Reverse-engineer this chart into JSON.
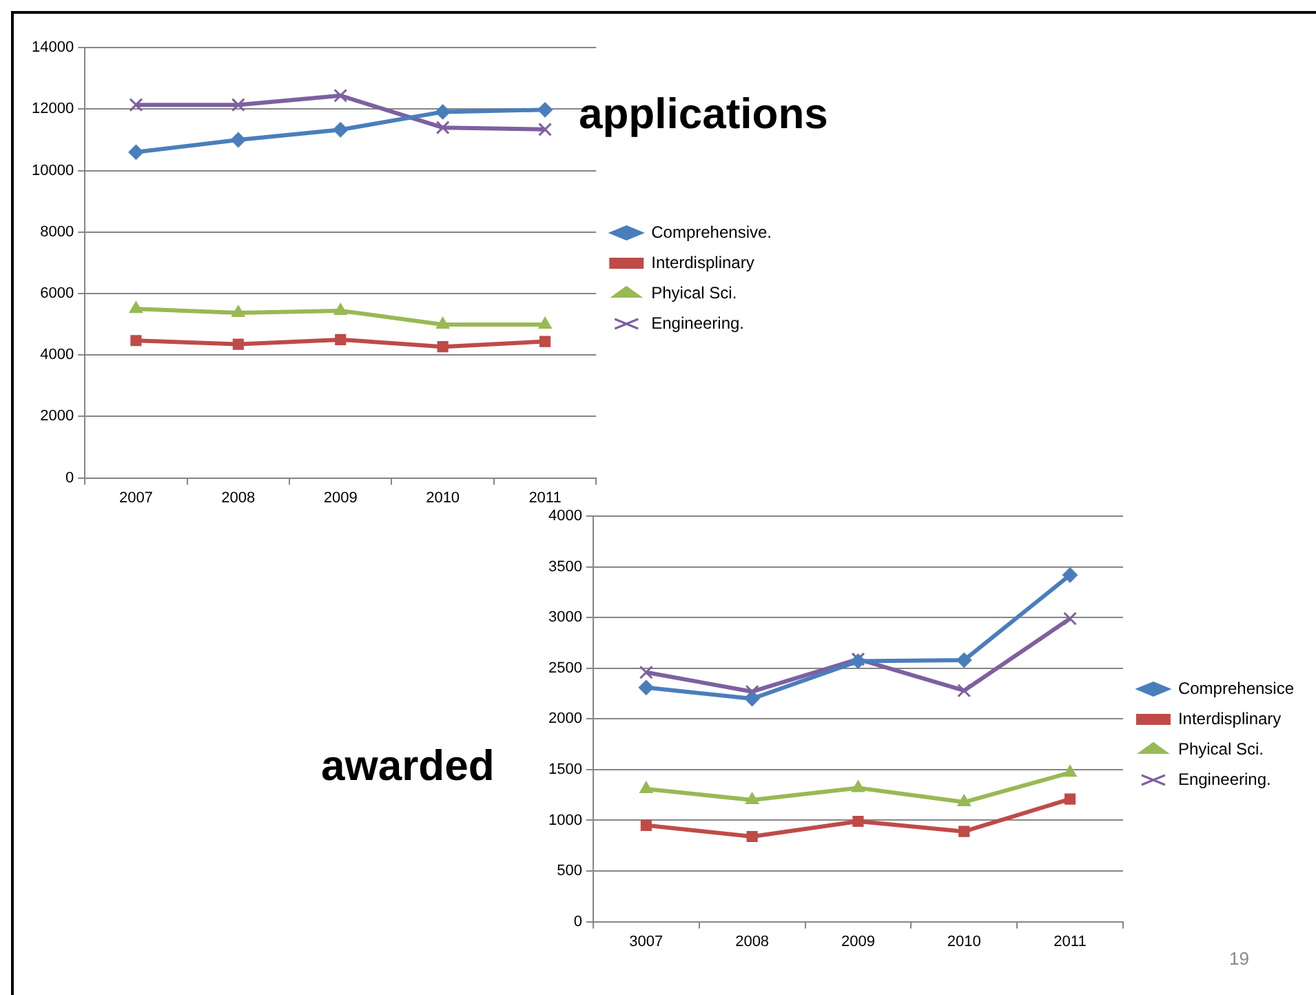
{
  "chart_data": [
    {
      "type": "line",
      "title": "applications",
      "categories": [
        "2007",
        "2008",
        "2009",
        "2010",
        "2011"
      ],
      "series": [
        {
          "name": "Comprehensive.",
          "color": "#4a7ebb",
          "marker": "diamond",
          "values": [
            10600,
            11000,
            11330,
            11910,
            11980
          ]
        },
        {
          "name": "Interdisplinary",
          "color": "#be4b48",
          "marker": "square",
          "values": [
            4470,
            4350,
            4500,
            4270,
            4440
          ]
        },
        {
          "name": "Phyical Sci.",
          "color": "#98b954",
          "marker": "triangle",
          "values": [
            5500,
            5370,
            5440,
            4990,
            4990
          ]
        },
        {
          "name": "Engineering.",
          "color": "#7d60a0",
          "marker": "cross",
          "values": [
            12140,
            12140,
            12440,
            11400,
            11340
          ]
        }
      ],
      "ylim": [
        0,
        14000
      ],
      "yticks": [
        0,
        2000,
        4000,
        6000,
        8000,
        10000,
        12000,
        14000
      ],
      "grid": "y",
      "legend": "right"
    },
    {
      "type": "line",
      "title": "awarded",
      "categories": [
        "3007",
        "2008",
        "2009",
        "2010",
        "2011"
      ],
      "series": [
        {
          "name": "Comprehensice",
          "color": "#4a7ebb",
          "marker": "diamond",
          "values": [
            2310,
            2200,
            2570,
            2580,
            3420
          ]
        },
        {
          "name": "Interdisplinary",
          "color": "#be4b48",
          "marker": "square",
          "values": [
            950,
            840,
            990,
            890,
            1210
          ]
        },
        {
          "name": "Phyical Sci.",
          "color": "#98b954",
          "marker": "triangle",
          "values": [
            1310,
            1200,
            1320,
            1180,
            1470
          ]
        },
        {
          "name": "Engineering.",
          "color": "#7d60a0",
          "marker": "cross",
          "values": [
            2460,
            2270,
            2590,
            2280,
            2990
          ]
        }
      ],
      "ylim": [
        0,
        4000
      ],
      "yticks": [
        0,
        500,
        1000,
        1500,
        2000,
        2500,
        3000,
        3500,
        4000
      ],
      "grid": "y",
      "legend": "right",
      "annotations": [
        "19"
      ]
    }
  ]
}
